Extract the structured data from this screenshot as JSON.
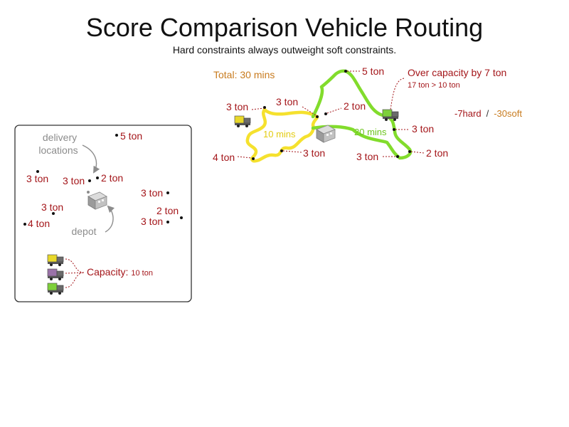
{
  "title": "Score Comparison Vehicle Routing",
  "subtitle": "Hard constraints always outweight soft constraints.",
  "colors": {
    "load_label": "#a4161a",
    "soft": "#c87b1e",
    "guide": "#8c8c8c",
    "route_yellow": "#f5e12e",
    "route_green": "#82dc2c",
    "vehicle_yellow": "#e8d82a",
    "vehicle_purple": "#9a72a8",
    "vehicle_green": "#7ed03a"
  },
  "legend": {
    "delivery_label": [
      "delivery",
      "locations"
    ],
    "depot_label": "depot",
    "capacity_label": "Capacity:",
    "capacity_value": "10 ton",
    "locations": [
      "5 ton",
      "3 ton",
      "3 ton",
      "2 ton",
      "3 ton",
      "3 ton",
      "2 ton",
      "4 ton",
      "3 ton"
    ],
    "vehicles": [
      "yellow",
      "purple",
      "green"
    ]
  },
  "solution": {
    "total": "Total: 30 mins",
    "yellow_route_time": "10 mins",
    "green_route_time": "20 mins",
    "over_capacity_title": "Over capacity by 7 ton",
    "over_capacity_detail": "17 ton > 10 ton",
    "score_hard": "-7hard",
    "score_separator": "/",
    "score_soft": "-30soft",
    "locations": [
      "3 ton",
      "3 ton",
      "2 ton",
      "5 ton",
      "4 ton",
      "3 ton",
      "3 ton",
      "3 ton",
      "2 ton"
    ]
  }
}
